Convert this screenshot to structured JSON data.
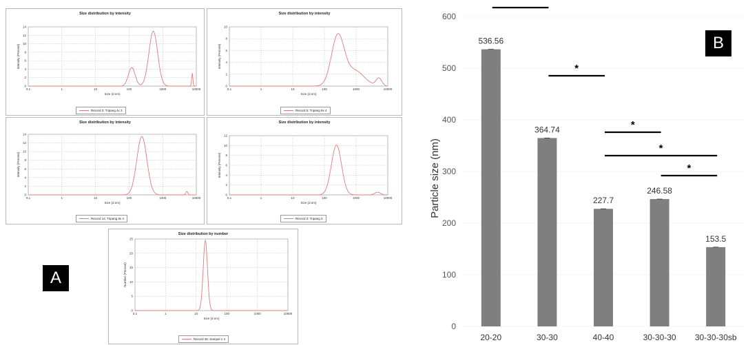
{
  "panel_a": {
    "label": "A",
    "plots": [
      {
        "title": "Size distribution by intensity",
        "ylabel": "Intensity (Percent)",
        "xlabel": "Size (d.nm)",
        "legend": "Record 3: Tripang 4x 3",
        "yticks": [
          "0",
          "2",
          "4",
          "6",
          "8",
          "10",
          "12",
          "14"
        ],
        "ymax": 14
      },
      {
        "title": "Size distribution by intensity",
        "ylabel": "Intensity (Percent)",
        "xlabel": "Size (d.nm)",
        "legend": "Record 5: Tripang 6x 4",
        "yticks": [
          "0",
          "2",
          "4",
          "6",
          "8",
          "10"
        ],
        "ymax": 10
      },
      {
        "title": "Size distribution by intensity",
        "ylabel": "Intensity (Percent)",
        "xlabel": "Size (d.nm)",
        "legend": "Record 14: Tripang 8x 4",
        "yticks": [
          "0",
          "2",
          "4",
          "6",
          "8",
          "10",
          "12",
          "14"
        ],
        "ymax": 14
      },
      {
        "title": "Size distribution by intensity",
        "ylabel": "Intensity (Percent)",
        "xlabel": "Size (d.nm)",
        "legend": "Record 3: Tripang 2",
        "yticks": [
          "0",
          "2",
          "4",
          "6",
          "8",
          "10",
          "12"
        ],
        "ymax": 12
      },
      {
        "title": "Size distribution by number",
        "ylabel": "Number (Percent)",
        "xlabel": "Size (d.nm)",
        "legend": "Record 45: Sampel 1 4",
        "yticks": [
          "0",
          "5",
          "10",
          "15",
          "20",
          "25"
        ],
        "ymax": 25
      }
    ],
    "xticks": [
      "0.1",
      "1",
      "10",
      "100",
      "1000",
      "10000"
    ],
    "line_color": "#e07a7a"
  },
  "panel_b": {
    "label": "B",
    "bar_color": "#7f7f7f"
  },
  "chart_data": {
    "type": "bar",
    "title": "",
    "xlabel": "",
    "ylabel": "Particle size (nm)",
    "categories": [
      "20-20",
      "30-30",
      "40-40",
      "30-30-30",
      "30-30-30sb"
    ],
    "values": [
      536.56,
      364.74,
      227.7,
      246.58,
      153.5
    ],
    "data_labels": [
      "536.56",
      "364.74",
      "227.7",
      "246.58",
      "153.5"
    ],
    "ylim": [
      0,
      600
    ],
    "yticks": [
      "0",
      "100",
      "200",
      "300",
      "400",
      "500",
      "600"
    ],
    "grid": false,
    "significance": [
      {
        "from": "20-20",
        "to": "30-30",
        "label": ""
      },
      {
        "from": "30-30",
        "to": "40-40",
        "label": "*"
      },
      {
        "from": "40-40",
        "to": "30-30-30",
        "label": "*"
      },
      {
        "from": "40-40",
        "to": "30-30-30sb",
        "label": "*"
      },
      {
        "from": "30-30-30",
        "to": "30-30-30sb",
        "label": "*"
      }
    ]
  }
}
